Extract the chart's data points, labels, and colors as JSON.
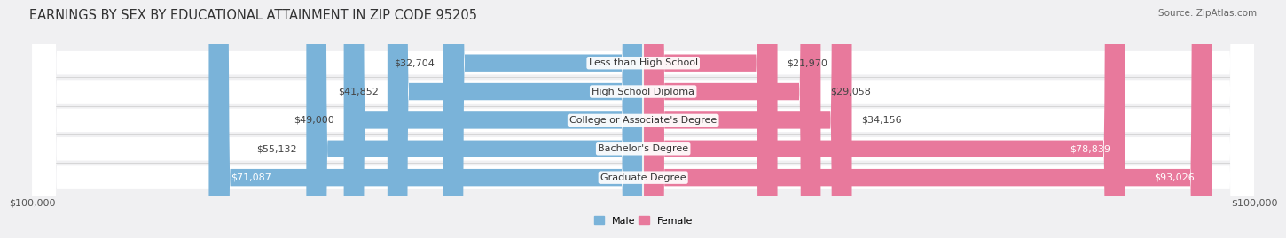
{
  "title": "EARNINGS BY SEX BY EDUCATIONAL ATTAINMENT IN ZIP CODE 95205",
  "source": "Source: ZipAtlas.com",
  "categories": [
    "Less than High School",
    "High School Diploma",
    "College or Associate's Degree",
    "Bachelor's Degree",
    "Graduate Degree"
  ],
  "male_values": [
    32704,
    41852,
    49000,
    55132,
    71087
  ],
  "female_values": [
    21970,
    29058,
    34156,
    78839,
    93026
  ],
  "male_color": "#7ab3d9",
  "female_color": "#e8799c",
  "row_bg_color": "#e8e8eb",
  "fig_bg_color": "#f0f0f2",
  "max_value": 100000,
  "xlabel_left": "$100,000",
  "xlabel_right": "$100,000",
  "legend_male": "Male",
  "legend_female": "Female",
  "title_fontsize": 10.5,
  "label_fontsize": 8,
  "value_fontsize": 8,
  "source_fontsize": 7.5
}
